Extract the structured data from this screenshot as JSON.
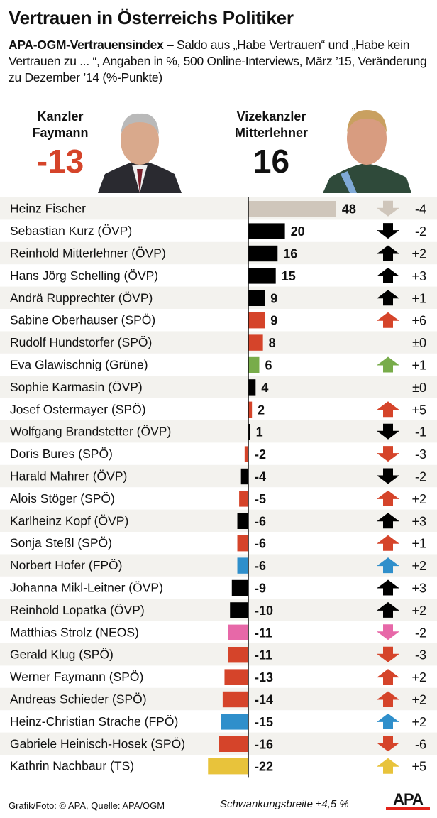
{
  "title": "Vertrauen in Österreichs Politiker",
  "subtitle_bold": "APA-OGM-Vertrauensindex",
  "subtitle_rest": " – Saldo aus „Habe Vertrauen“ und „Habe kein Vertrauen zu ... “, Angaben in %, 500 Online-Interviews, März ’15, Veränderung zu Dezember ’14 (%-Punkte)",
  "highlights": [
    {
      "label1": "Kanzler",
      "label2": "Faymann",
      "value": "-13",
      "color": "#d5442a"
    },
    {
      "label1": "Vizekanzler",
      "label2": "Mitterlehner",
      "value": "16",
      "color": "#111111"
    }
  ],
  "chart_data": {
    "type": "bar",
    "orientation": "horizontal",
    "categories": [
      "Heinz Fischer",
      "Sebastian Kurz (ÖVP)",
      "Reinhold Mitterlehner (ÖVP)",
      "Hans Jörg Schelling (ÖVP)",
      "Andrä Rupprechter (ÖVP)",
      "Sabine Oberhauser (SPÖ)",
      "Rudolf Hundstorfer (SPÖ)",
      "Eva Glawischnig (Grüne)",
      "Sophie Karmasin (ÖVP)",
      "Josef Ostermayer (SPÖ)",
      "Wolfgang Brandstetter (ÖVP)",
      "Doris Bures (SPÖ)",
      "Harald Mahrer (ÖVP)",
      "Alois Stöger (SPÖ)",
      "Karlheinz Kopf (ÖVP)",
      "Sonja Steßl (SPÖ)",
      "Norbert Hofer (FPÖ)",
      "Johanna Mikl-Leitner (ÖVP)",
      "Reinhold Lopatka (ÖVP)",
      "Matthias Strolz (NEOS)",
      "Gerald Klug (SPÖ)",
      "Werner Faymann (SPÖ)",
      "Andreas Schieder (SPÖ)",
      "Heinz-Christian Strache (FPÖ)",
      "Gabriele Heinisch-Hosek (SPÖ)",
      "Kathrin Nachbaur (TS)"
    ],
    "values": [
      48,
      20,
      16,
      15,
      9,
      9,
      8,
      6,
      4,
      2,
      1,
      -2,
      -4,
      -5,
      -6,
      -6,
      -6,
      -9,
      -10,
      -11,
      -11,
      -13,
      -14,
      -15,
      -16,
      -22
    ],
    "changes": [
      "-4",
      "-2",
      "+2",
      "+3",
      "+1",
      "+6",
      "±0",
      "+1",
      "±0",
      "+5",
      "-1",
      "-3",
      "-2",
      "+2",
      "+3",
      "+1",
      "+2",
      "+3",
      "+2",
      "-2",
      "-3",
      "+2",
      "+2",
      "+2",
      "-6",
      "+5"
    ],
    "colors": [
      "#cfc6bb",
      "#000000",
      "#000000",
      "#000000",
      "#000000",
      "#d5442a",
      "#d5442a",
      "#78ac4a",
      "#000000",
      "#d5442a",
      "#000000",
      "#d5442a",
      "#000000",
      "#d5442a",
      "#000000",
      "#d5442a",
      "#2f8fcb",
      "#000000",
      "#000000",
      "#e768a8",
      "#d5442a",
      "#d5442a",
      "#d5442a",
      "#2f8fcb",
      "#d5442a",
      "#e8c33b"
    ],
    "xlim": [
      -22,
      48
    ]
  },
  "footer": {
    "source": "Grafik/Foto: © APA, Quelle: APA/OGM",
    "margin": "Schwankungsbreite ±4,5 %",
    "logo": "APA"
  }
}
